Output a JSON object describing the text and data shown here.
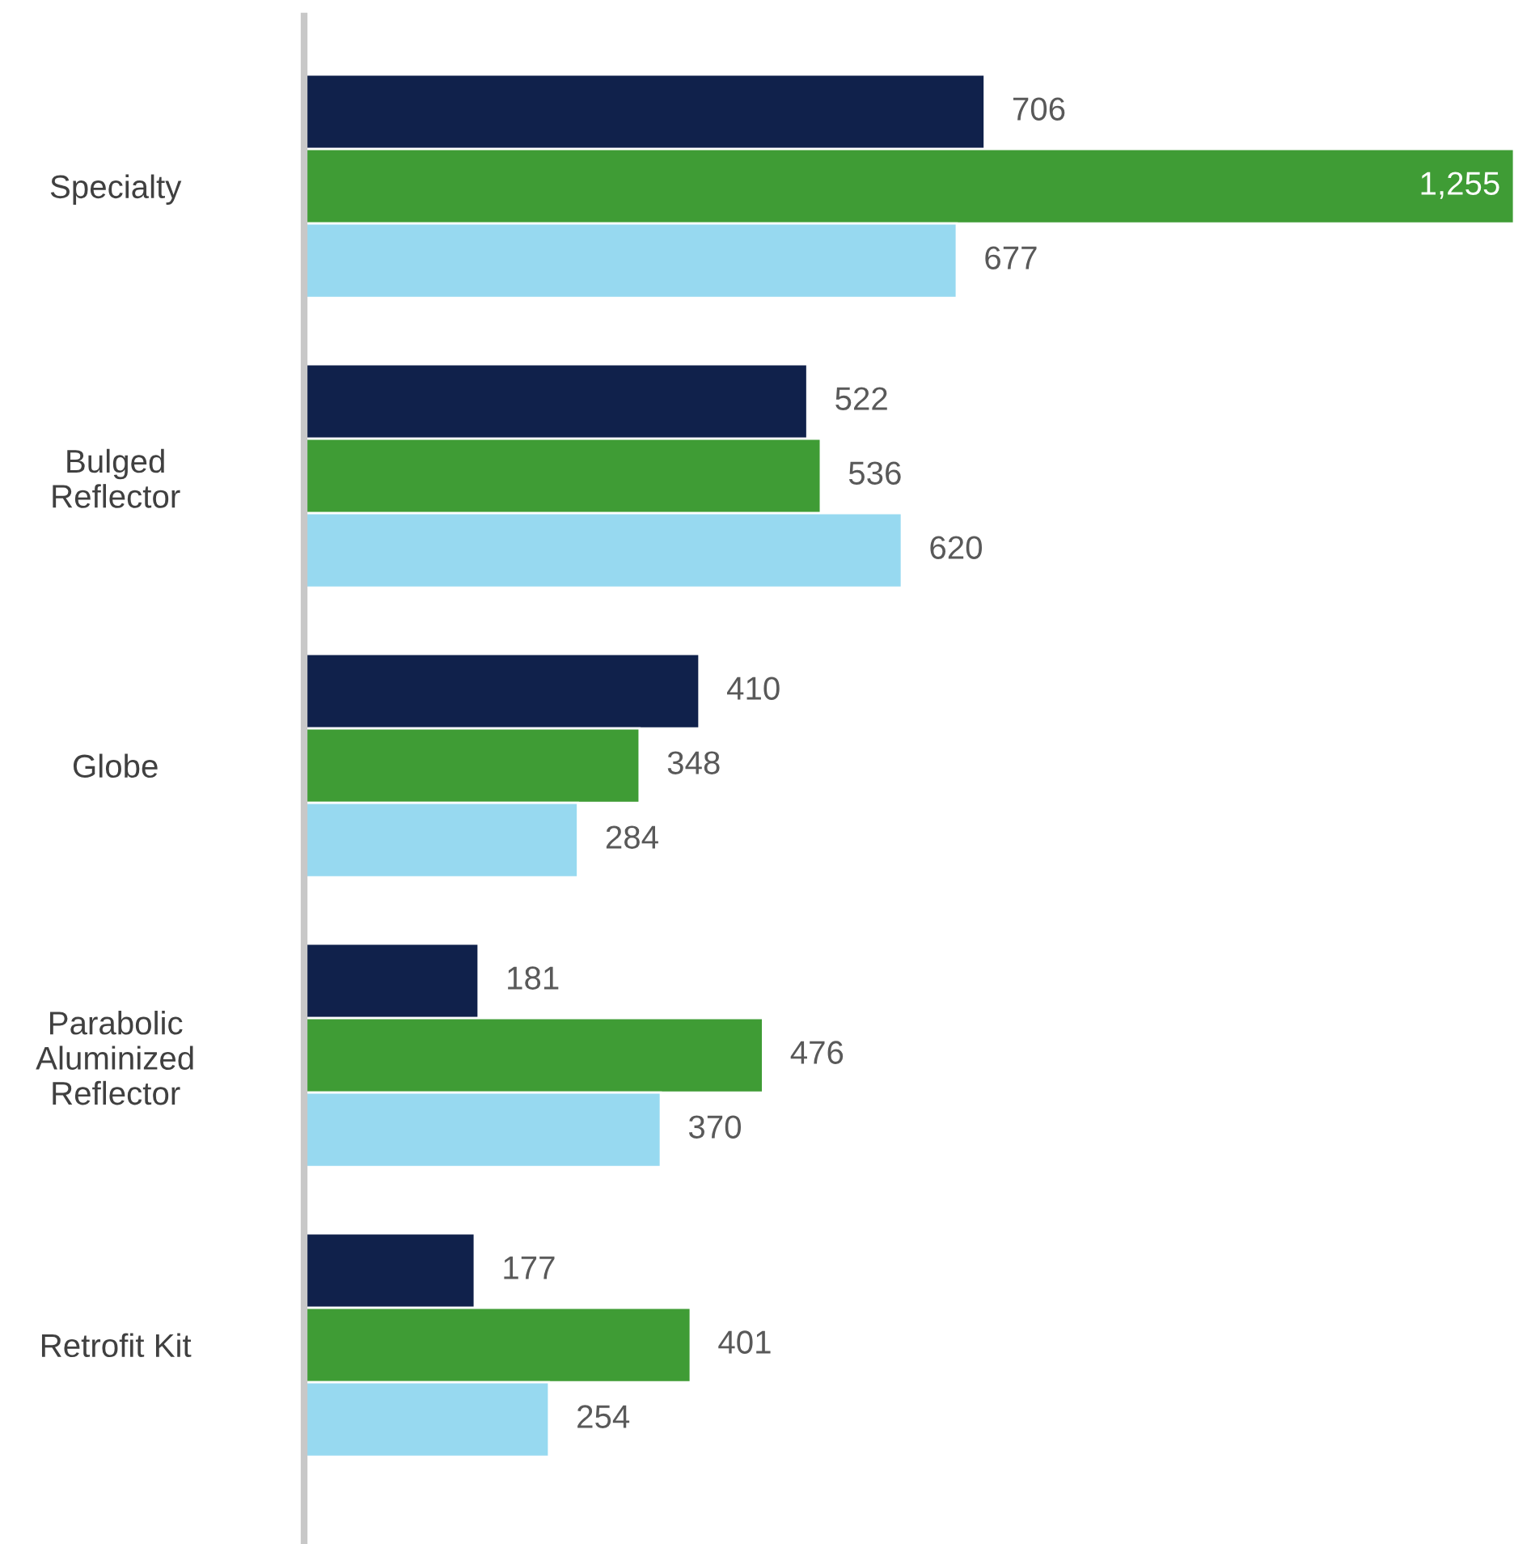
{
  "chart_data": {
    "type": "bar",
    "orientation": "horizontal",
    "categories": [
      "Specialty",
      "Bulged\nReflector",
      "Globe",
      "Parabolic\nAluminized\nReflector",
      "Retrofit Kit"
    ],
    "series": [
      {
        "color": "#10214b",
        "values": [
          706,
          522,
          410,
          181,
          177
        ],
        "value_labels": [
          "706",
          "522",
          "410",
          "181",
          "177"
        ]
      },
      {
        "color": "#3f9c35",
        "values": [
          1255,
          536,
          348,
          476,
          401
        ],
        "value_labels": [
          "1,255",
          "536",
          "348",
          "476",
          "401"
        ]
      },
      {
        "color": "#97d9f0",
        "values": [
          677,
          620,
          284,
          370,
          254
        ],
        "value_labels": [
          "677",
          "620",
          "284",
          "370",
          "254"
        ]
      }
    ],
    "grid": false,
    "legend": false
  }
}
